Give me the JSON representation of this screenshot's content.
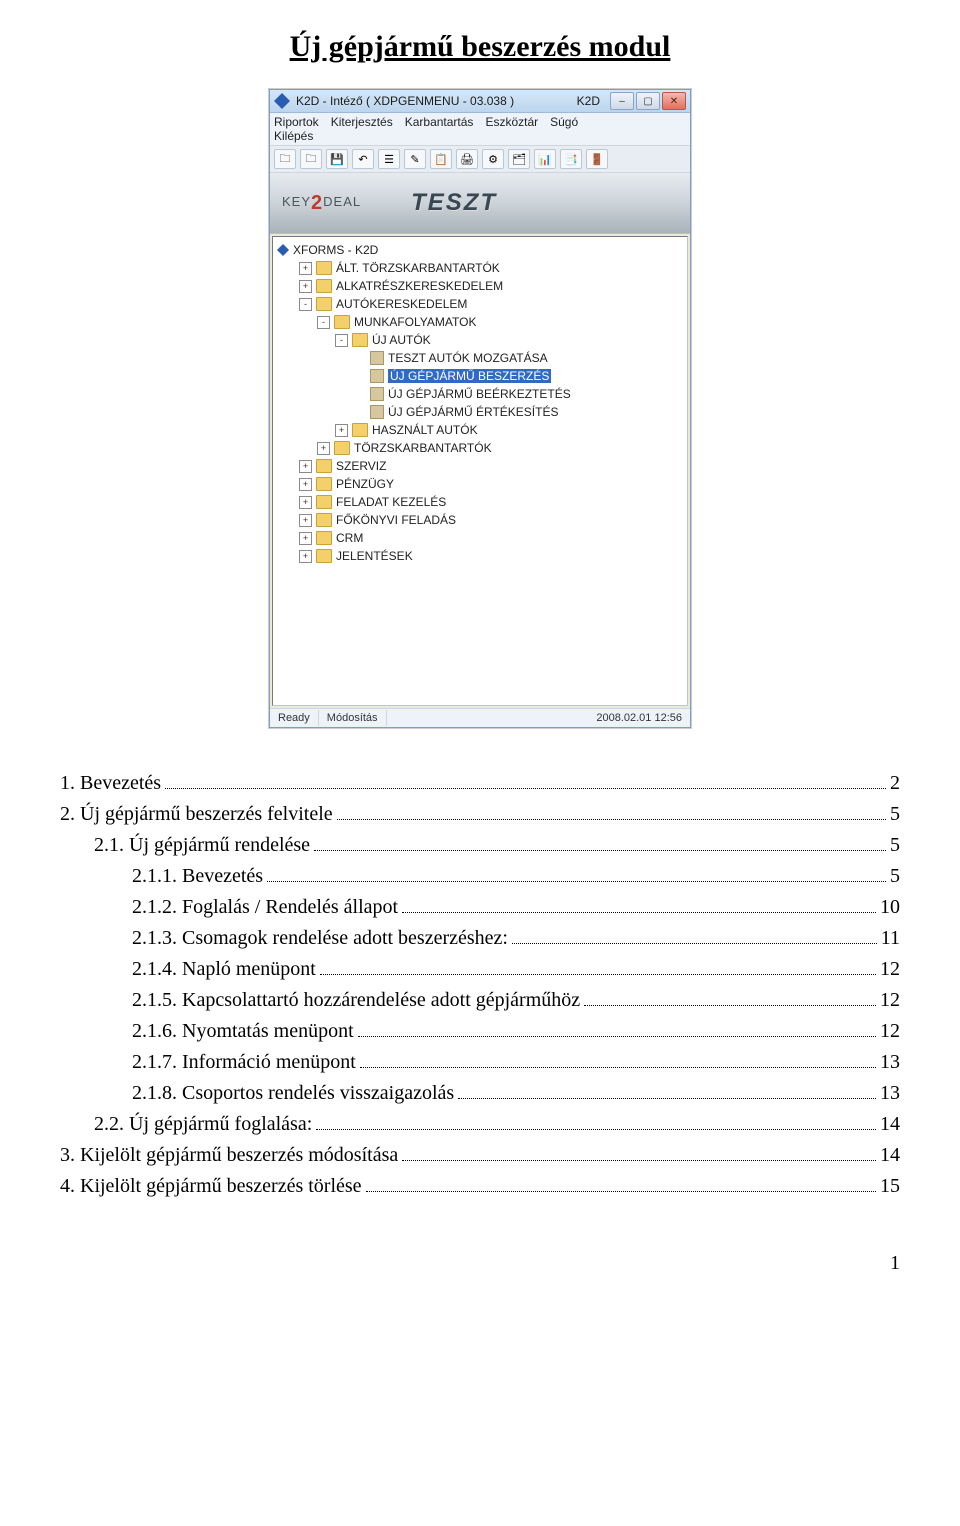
{
  "doc": {
    "title": "Új gépjármű beszerzés modul",
    "page_number": "1"
  },
  "window": {
    "title": "K2D - Intéző ( XDPGENMENU - 03.038 )",
    "title2": "K2D",
    "menu": [
      "Riportok",
      "Kiterjesztés",
      "Karbantartás",
      "Eszköztár",
      "Súgó",
      "Kilépés"
    ],
    "status": {
      "ready": "Ready",
      "mode": "Módosítás",
      "datetime": "2008.02.01 12:56"
    },
    "banner": {
      "brand_prefix": "KEY",
      "brand_suffix": "DEAL",
      "teszt": "TESZT"
    }
  },
  "tree": {
    "root": "XFORMS - K2D",
    "items": [
      {
        "ind": 1,
        "exp": "+",
        "label": "ÁLT. TÖRZSKARBANTARTÓK"
      },
      {
        "ind": 1,
        "exp": "+",
        "label": "ALKATRÉSZKERESKEDELEM"
      },
      {
        "ind": 1,
        "exp": "-",
        "label": "AUTÓKERESKEDELEM"
      },
      {
        "ind": 2,
        "exp": "-",
        "label": "MUNKAFOLYAMATOK"
      },
      {
        "ind": 3,
        "exp": "-",
        "label": "ÚJ AUTÓK"
      },
      {
        "ind": 4,
        "exp": "",
        "leaf": true,
        "label": "TESZT AUTÓK MOZGATÁSA"
      },
      {
        "ind": 4,
        "exp": "",
        "leaf": true,
        "label": "ÚJ GÉPJÁRMŰ BESZERZÉS",
        "selected": true
      },
      {
        "ind": 4,
        "exp": "",
        "leaf": true,
        "label": "ÚJ GÉPJÁRMŰ BEÉRKEZTETÉS"
      },
      {
        "ind": 4,
        "exp": "",
        "leaf": true,
        "label": "ÚJ GÉPJÁRMŰ ÉRTÉKESÍTÉS"
      },
      {
        "ind": 3,
        "exp": "+",
        "label": "HASZNÁLT AUTÓK"
      },
      {
        "ind": 2,
        "exp": "+",
        "label": "TÖRZSKARBANTARTÓK"
      },
      {
        "ind": 1,
        "exp": "+",
        "label": "SZERVIZ"
      },
      {
        "ind": 1,
        "exp": "+",
        "label": "PÉNZÜGY"
      },
      {
        "ind": 1,
        "exp": "+",
        "label": "FELADAT KEZELÉS"
      },
      {
        "ind": 1,
        "exp": "+",
        "label": "FŐKÖNYVI FELADÁS"
      },
      {
        "ind": 1,
        "exp": "+",
        "label": "CRM"
      },
      {
        "ind": 1,
        "exp": "+",
        "label": "JELENTÉSEK"
      }
    ]
  },
  "toc": [
    {
      "level": 0,
      "label": "1.     Bevezetés",
      "page": "2"
    },
    {
      "level": 0,
      "label": "2.     Új gépjármű beszerzés felvitele",
      "page": "5"
    },
    {
      "level": 1,
      "label": "2.1.     Új gépjármű rendelése",
      "page": "5"
    },
    {
      "level": 2,
      "label": "2.1.1.     Bevezetés",
      "page": "5"
    },
    {
      "level": 2,
      "label": "2.1.2.     Foglalás / Rendelés állapot",
      "page": "10"
    },
    {
      "level": 2,
      "label": "2.1.3.     Csomagok rendelése adott beszerzéshez:",
      "page": "11"
    },
    {
      "level": 2,
      "label": "2.1.4.     Napló menüpont",
      "page": "12"
    },
    {
      "level": 2,
      "label": "2.1.5.     Kapcsolattartó hozzárendelése adott gépjárműhöz",
      "page": "12"
    },
    {
      "level": 2,
      "label": "2.1.6.     Nyomtatás menüpont",
      "page": "12"
    },
    {
      "level": 2,
      "label": "2.1.7.     Információ menüpont",
      "page": "13"
    },
    {
      "level": 2,
      "label": "2.1.8.     Csoportos rendelés visszaigazolás",
      "page": "13"
    },
    {
      "level": 1,
      "label": "2.2.     Új gépjármű foglalása:",
      "page": "14"
    },
    {
      "level": 0,
      "label": "3.     Kijelölt gépjármű beszerzés módosítása",
      "page": "14"
    },
    {
      "level": 0,
      "label": "4.     Kijelölt gépjármű beszerzés törlése",
      "page": "15"
    }
  ],
  "toolbar_count": 13
}
